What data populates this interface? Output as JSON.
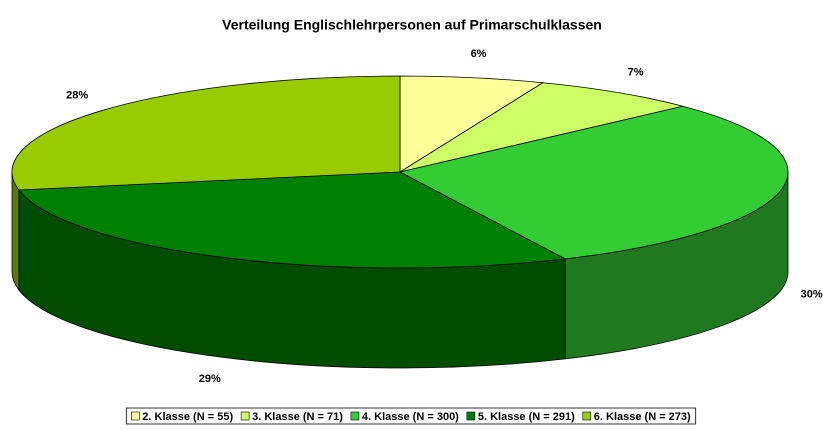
{
  "chart_data": {
    "type": "pie3d",
    "title": "Verteilung Englischlehrpersonen auf Primarschulklassen",
    "categories": [
      "2. Klasse (N = 55)",
      "3. Klasse (N = 71)",
      "4. Klasse (N = 300)",
      "5. Klasse (N = 291)",
      "6. Klasse (N = 273)"
    ],
    "values": [
      6,
      7,
      30,
      29,
      28
    ],
    "value_labels": [
      "6%",
      "7%",
      "30%",
      "29%",
      "28%"
    ],
    "colors": [
      "#ffff99",
      "#ccff66",
      "#33cc33",
      "#008000",
      "#99cc00"
    ],
    "legend": "bottom"
  }
}
